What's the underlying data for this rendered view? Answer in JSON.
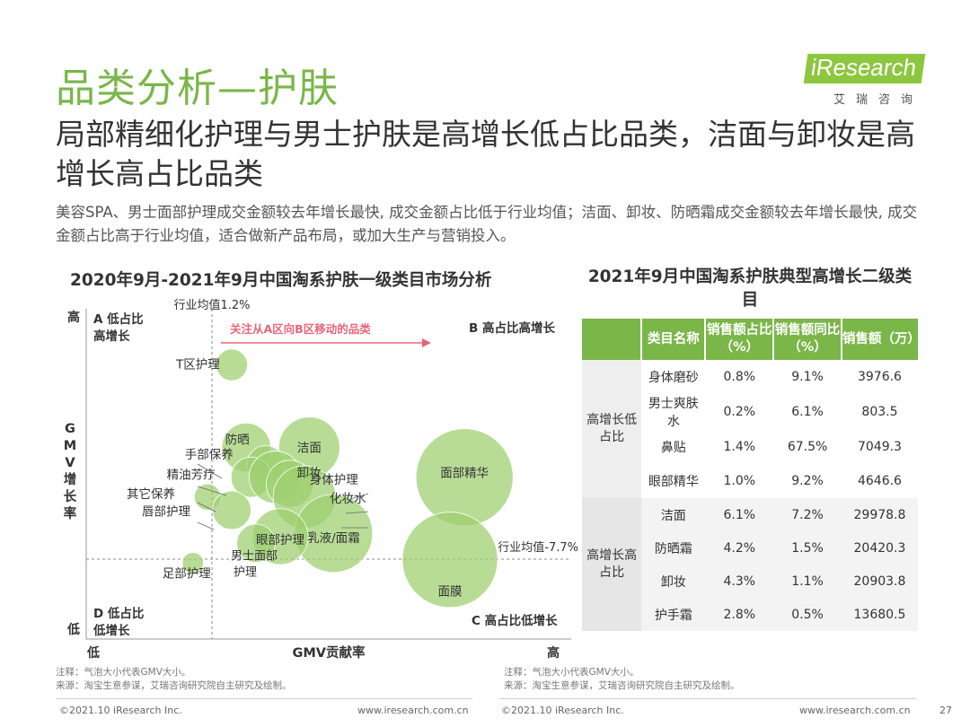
{
  "page_title": "品类分析—护肤",
  "logo": {
    "brand": "iResearch",
    "sub": "艾瑞咨询"
  },
  "headline": "局部精细化护理与男士护肤是高增长低占比品类，洁面与卸妆是高增长高占比品类",
  "description": "美容SPA、男士面部护理成交金额较去年增长最快, 成交金额占比低于行业均值；洁面、卸妆、防晒霜成交金额较去年增长最快, 成交金额占比高于行业均值，适合做新产品布局，或加大生产与营销投入。",
  "colors": {
    "accent": "#7ab648",
    "bubble": "#9ccf6e",
    "arrow_text": "#e8657a"
  },
  "chart_data": {
    "type": "scatter",
    "title": "2020年9月-2021年9月中国淘系护肤一级类目市场分析",
    "xlabel": "GMV贡献率",
    "ylabel": "GMV增长率",
    "x_low": "低",
    "x_high": "高",
    "y_high": "高",
    "y_low": "低",
    "ref_x_label": "行业均值1.2%",
    "ref_y_label": "行业均值-7.7%",
    "quadrants": {
      "A": "A 低占比高增长",
      "B": "B 高占比高增长",
      "C": "C 高占比低增长",
      "D": "D 低占比低增长"
    },
    "arrow_label": "关注从A区向B区移动的品类",
    "note": "气泡大小代表GMV大小。",
    "points": [
      {
        "name": "T区护理",
        "x": 0.3,
        "y": 0.83,
        "size": 0.1
      },
      {
        "name": "防晒",
        "x": 0.33,
        "y": 0.58,
        "size": 0.2
      },
      {
        "name": "洁面",
        "x": 0.46,
        "y": 0.58,
        "size": 0.27
      },
      {
        "name": "手部保养",
        "x": 0.37,
        "y": 0.53,
        "size": 0.13
      },
      {
        "name": "精油芳疗",
        "x": 0.34,
        "y": 0.49,
        "size": 0.15
      },
      {
        "name": "其它保养",
        "x": 0.25,
        "y": 0.43,
        "size": 0.07
      },
      {
        "name": "唇部护理",
        "x": 0.3,
        "y": 0.39,
        "size": 0.14
      },
      {
        "name": "卸妆",
        "x": 0.39,
        "y": 0.49,
        "size": 0.22
      },
      {
        "name": "身体护理",
        "x": 0.42,
        "y": 0.47,
        "size": 0.19
      },
      {
        "name": "化妆水",
        "x": 0.45,
        "y": 0.43,
        "size": 0.28
      },
      {
        "name": "面部精华",
        "x": 0.78,
        "y": 0.49,
        "size": 0.48
      },
      {
        "name": "乳液/面霜",
        "x": 0.51,
        "y": 0.32,
        "size": 0.37
      },
      {
        "name": "眼部护理",
        "x": 0.4,
        "y": 0.31,
        "size": 0.24
      },
      {
        "name": "男士面部护理",
        "x": 0.35,
        "y": 0.29,
        "size": 0.14
      },
      {
        "name": "足部护理",
        "x": 0.22,
        "y": 0.23,
        "size": 0.04
      },
      {
        "name": "面膜",
        "x": 0.75,
        "y": 0.24,
        "size": 0.47
      }
    ]
  },
  "table": {
    "title": "2021年9月中国淘系护肤典型高增长二级类目",
    "headers": [
      "类目名称",
      "销售额占比（%）",
      "销售额同比（%）",
      "销售额（万）"
    ],
    "groups": [
      {
        "label": "高增长低占比",
        "rows": [
          {
            "name": "身体磨砂",
            "share": "0.8%",
            "yoy": "9.1%",
            "sales": "3976.6"
          },
          {
            "name": "男士爽肤水",
            "share": "0.2%",
            "yoy": "6.1%",
            "sales": "803.5"
          },
          {
            "name": "鼻贴",
            "share": "1.4%",
            "yoy": "67.5%",
            "sales": "7049.3"
          },
          {
            "name": "眼部精华",
            "share": "1.0%",
            "yoy": "9.2%",
            "sales": "4646.6"
          }
        ]
      },
      {
        "label": "高增长高占比",
        "rows": [
          {
            "name": "洁面",
            "share": "6.1%",
            "yoy": "7.2%",
            "sales": "29978.8"
          },
          {
            "name": "防晒霜",
            "share": "4.2%",
            "yoy": "1.5%",
            "sales": "20420.3"
          },
          {
            "name": "卸妆",
            "share": "4.3%",
            "yoy": "1.1%",
            "sales": "20903.8"
          },
          {
            "name": "护手霜",
            "share": "2.8%",
            "yoy": "0.5%",
            "sales": "13680.5"
          }
        ]
      }
    ]
  },
  "notes": {
    "left_note": "注释：气泡大小代表GMV大小。",
    "left_source": "来源：淘宝生意参谋，艾瑞咨询研究院自主研究及绘制。",
    "right_note": "注释：气泡大小代表GMV大小。",
    "right_source": "来源：淘宝生意参谋，艾瑞咨询研究院自主研究及绘制。"
  },
  "footer": {
    "left_copyright": "©2021.10 iResearch Inc.",
    "left_url": "www.iresearch.com.cn",
    "right_copyright": "©2021.10 iResearch Inc.",
    "right_url": "www.iresearch.com.cn",
    "page_number": "27"
  }
}
